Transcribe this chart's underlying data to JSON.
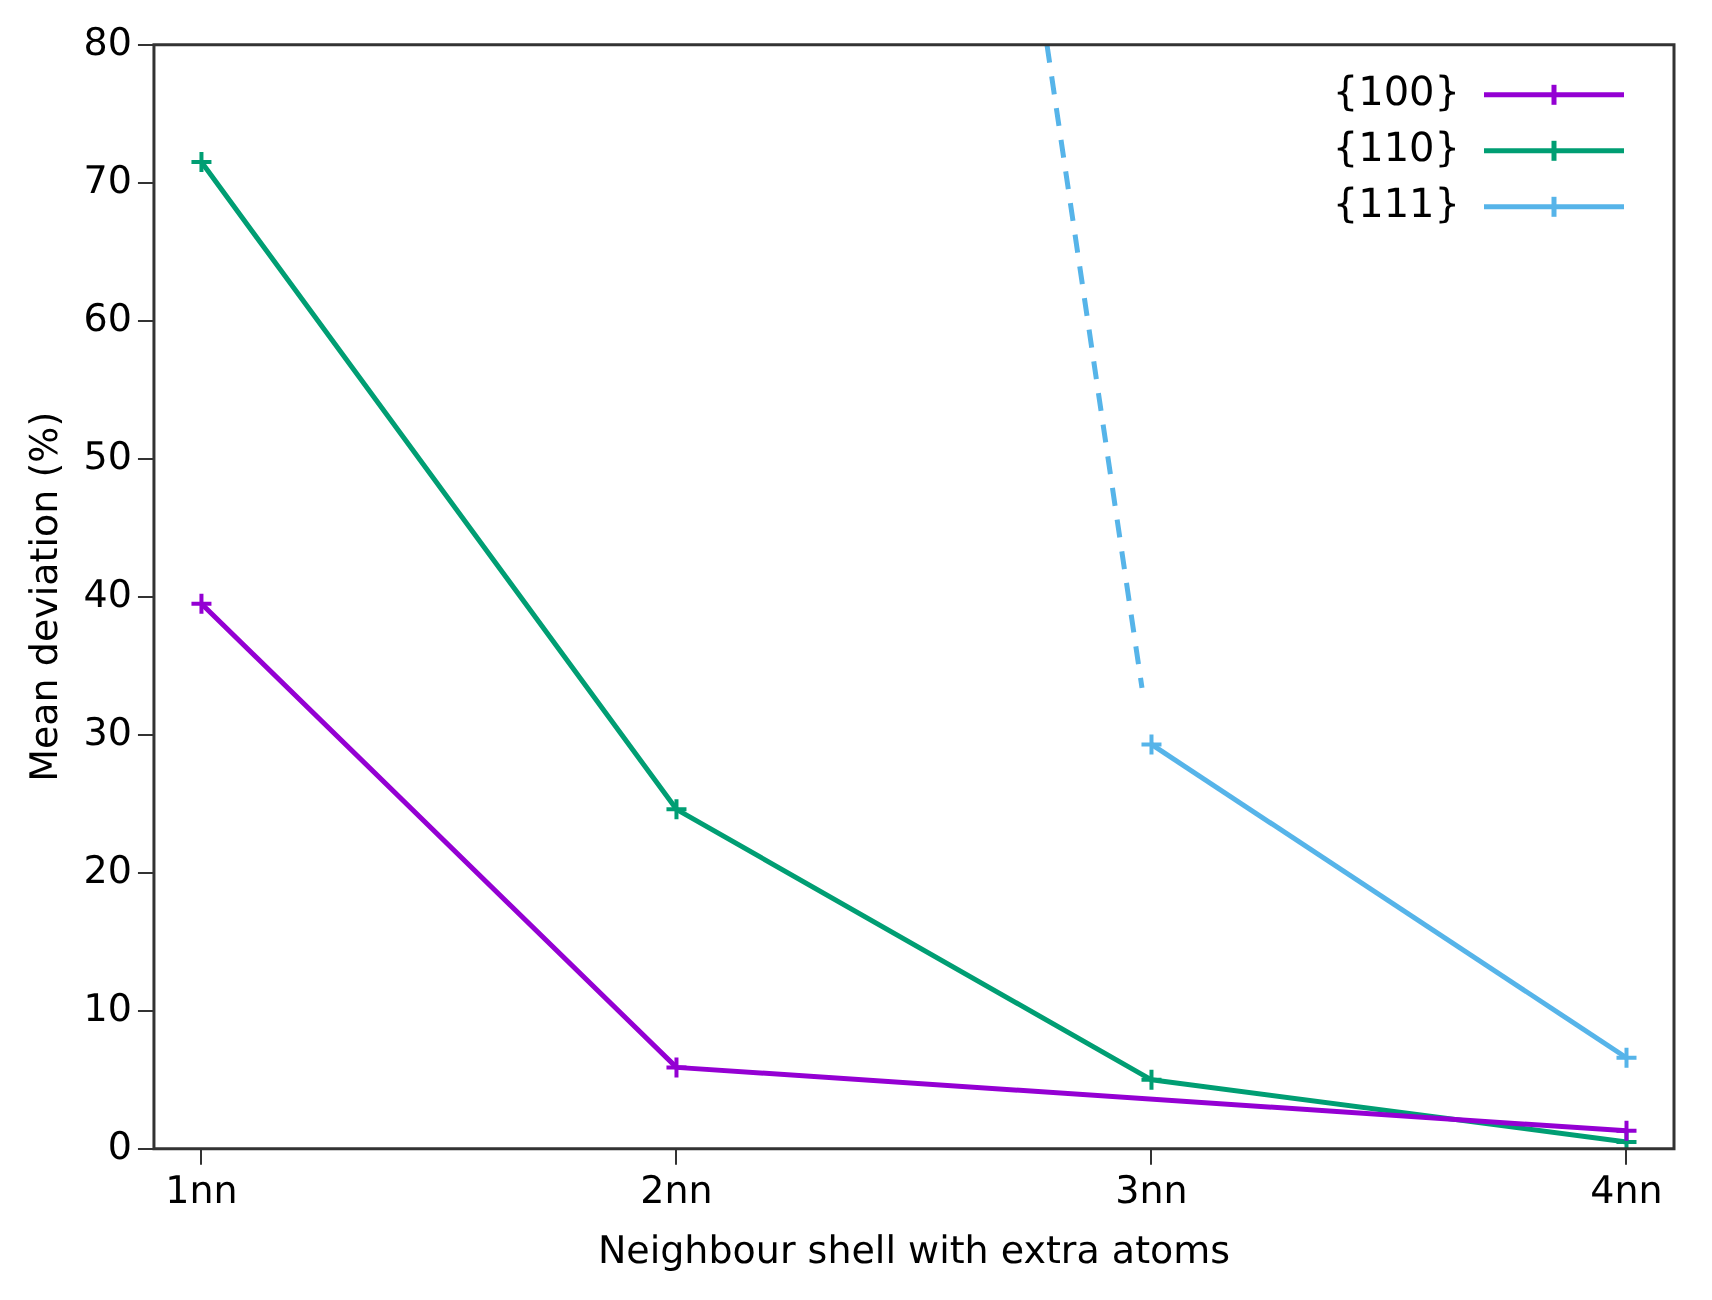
{
  "chart_data": {
    "type": "line",
    "xlabel": "Neighbour shell with extra atoms",
    "ylabel": "Mean deviation (%)",
    "xlim": [
      0.9,
      4.1
    ],
    "xticks": [
      {
        "value": 1,
        "label": "1nn"
      },
      {
        "value": 2,
        "label": "2nn"
      },
      {
        "value": 3,
        "label": "3nn"
      },
      {
        "value": 4,
        "label": "4nn"
      }
    ],
    "ylim": [
      0,
      80
    ],
    "yticks": [
      0,
      10,
      20,
      30,
      40,
      50,
      60,
      70,
      80
    ],
    "series": [
      {
        "name": "{100}",
        "color": "#9400d3",
        "x": [
          1,
          2,
          4
        ],
        "values": [
          39.5,
          5.9,
          1.3
        ]
      },
      {
        "name": "{110}",
        "color": "#009e73",
        "x": [
          1,
          2,
          3,
          4
        ],
        "values": [
          71.5,
          24.6,
          5.0,
          0.5
        ]
      },
      {
        "name": "{111}",
        "color": "#56b4e9",
        "x": [
          3,
          4
        ],
        "values": [
          29.3,
          6.6
        ]
      },
      {
        "color": "#56b4e9",
        "x": [
          2.78,
          2.98
        ],
        "values": [
          80,
          33.4
        ],
        "line_style": "dashed",
        "marker": "none"
      }
    ],
    "legend": "top right",
    "marker": "cross",
    "grid": false
  }
}
